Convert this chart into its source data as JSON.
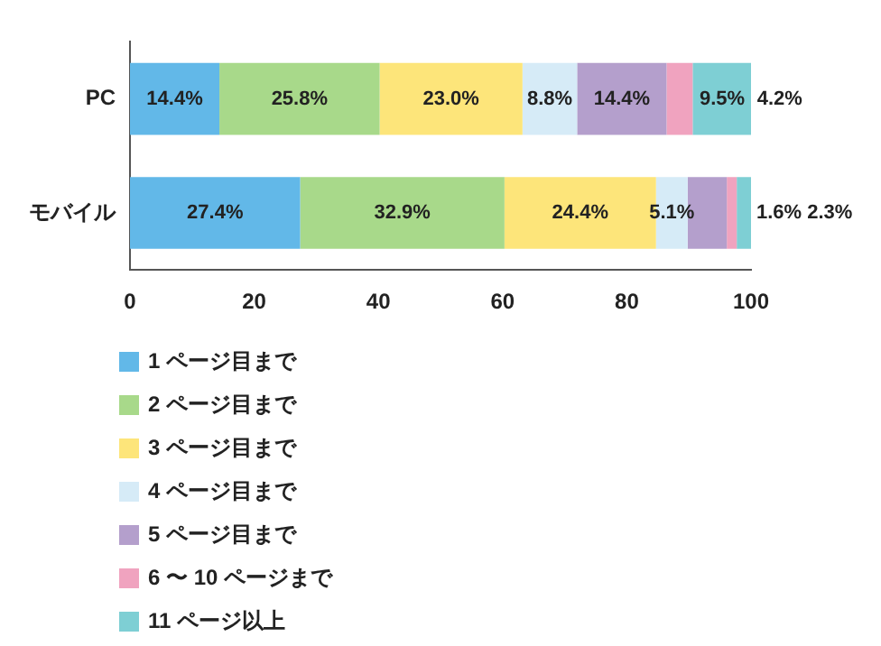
{
  "chart_data": {
    "type": "bar",
    "orientation": "horizontal",
    "stacked": true,
    "categories": [
      "PC",
      "モバイル"
    ],
    "series": [
      {
        "name": "1 ページ目まで",
        "color": "#62b8e8",
        "values": [
          14.4,
          27.4
        ],
        "value_labels": [
          "14.4%",
          "27.4%"
        ]
      },
      {
        "name": "2 ページ目まで",
        "color": "#a8d98a",
        "values": [
          25.8,
          32.9
        ],
        "value_labels": [
          "25.8%",
          "32.9%"
        ]
      },
      {
        "name": "3 ページ目まで",
        "color": "#fde57a",
        "values": [
          23.0,
          24.4
        ],
        "value_labels": [
          "23.0%",
          "24.4%"
        ]
      },
      {
        "name": "4 ページ目まで",
        "color": "#d6ebf7",
        "values": [
          8.8,
          5.1
        ],
        "value_labels": [
          "8.8%",
          "5.1%"
        ]
      },
      {
        "name": "5 ページ目まで",
        "color": "#b49fcc",
        "values": [
          14.4,
          6.3
        ],
        "value_labels": [
          "14.4%",
          null
        ]
      },
      {
        "name": "6 〜 10 ページまで",
        "color": "#f0a3bf",
        "values": [
          4.2,
          1.6
        ],
        "value_labels": [
          "4.2%",
          "1.6%"
        ]
      },
      {
        "name": "11 ページ以上",
        "color": "#7ecfd4",
        "values": [
          9.5,
          2.3
        ],
        "value_labels": [
          "9.5%",
          "2.3%"
        ]
      }
    ],
    "xlim": [
      0,
      100
    ],
    "xticks": [
      0,
      20,
      40,
      60,
      80,
      100
    ],
    "grid": false,
    "legend": "bottom left"
  }
}
